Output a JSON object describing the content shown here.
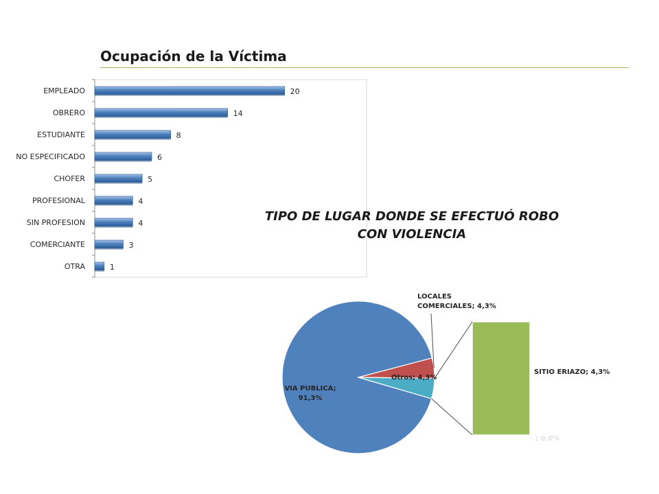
{
  "slide": {
    "title": "Ocupación de la Víctima"
  },
  "chart_data": [
    {
      "type": "bar",
      "orientation": "horizontal",
      "title": "",
      "categories": [
        "EMPLEADO",
        "OBRERO",
        "ESTUDIANTE",
        "NO ESPECIFICADO",
        "CHOFER",
        "PROFESIONAL",
        "SIN PROFESION",
        "COMERCIANTE",
        "OTRA"
      ],
      "values": [
        20,
        14,
        8,
        6,
        5,
        4,
        4,
        3,
        1
      ],
      "data_labels": [
        "20",
        "14",
        "8",
        "6",
        "5",
        "4",
        "4",
        "3",
        "1"
      ],
      "xlim": [
        0,
        24
      ],
      "grid": false,
      "bar_color": "#4f81bd"
    },
    {
      "type": "pie",
      "subtype": "pie-of-pie",
      "title": "TIPO DE LUGAR DONDE SE EFECTUÓ ROBO CON VIOLENCIA",
      "slices": [
        {
          "label": "VIA PUBLICA",
          "value": 91.3,
          "text": "VIA PUBLICA; 91,3%",
          "color": "#4f81bd"
        },
        {
          "label": "LOCALES COMERCIALES",
          "value": 4.3,
          "text": "LOCALES COMERCIALES; 4,3%",
          "color": "#c0504d"
        },
        {
          "label": "Otros",
          "value": 4.3,
          "text": "Otros; 4,3%",
          "color": "#4bacc6"
        }
      ],
      "secondary": [
        {
          "label": "SITIO ERIAZO",
          "value": 4.3,
          "text": "SITIO ERIAZO; 4,3%",
          "color": "#9bbb59"
        },
        {
          "label": "",
          "value": 0.0,
          "text": "; 0,0%",
          "color": "#dddddd"
        }
      ]
    }
  ]
}
